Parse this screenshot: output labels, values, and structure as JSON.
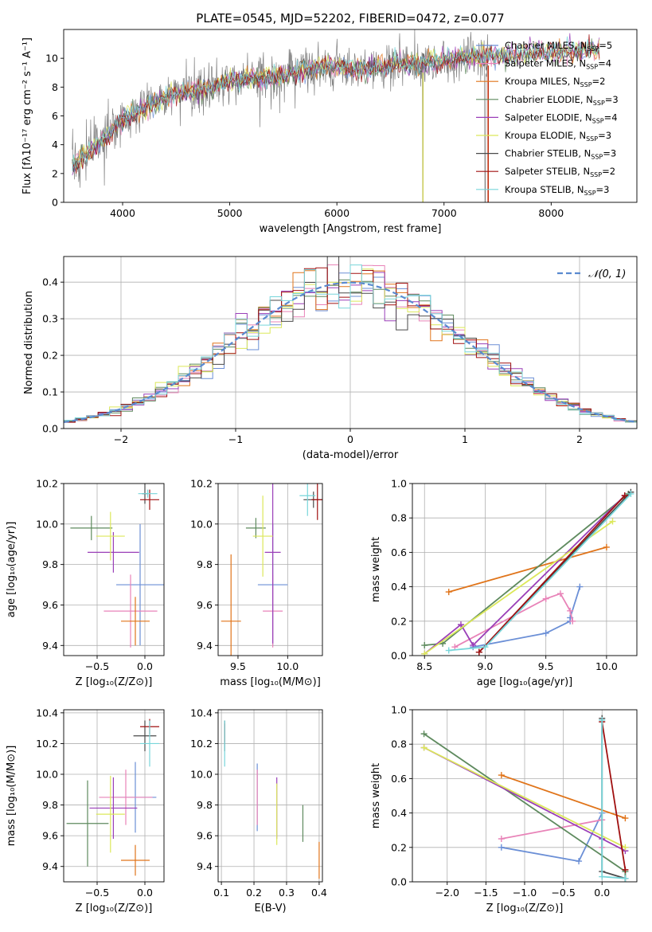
{
  "figure_title": "PLATE=0545, MJD=52202, FIBERID=0472, z=0.077",
  "colors": {
    "Chabrier MILES": "#6b8fd6",
    "Salpeter MILES": "#e883b8",
    "Kroupa MILES": "#e0741a",
    "Chabrier ELODIE": "#5e8a5e",
    "Salpeter ELODIE": "#9a3fb8",
    "Kroupa ELODIE": "#dce85a",
    "Chabrier STELIB": "#4a4a4a",
    "Salpeter STELIB": "#a01010",
    "Kroupa STELIB": "#78d6da",
    "data": "#808080",
    "normal": "#5a8ad0"
  },
  "chart_data": [
    {
      "id": "spectrum",
      "type": "line",
      "title": "PLATE=0545, MJD=52202, FIBERID=0472, z=0.077",
      "xlabel": "wavelength [Angstrom, rest frame]",
      "ylabel": "Flux [fλ10⁻¹⁷ erg cm⁻² s⁻¹ A⁻¹]",
      "xlim": [
        3450,
        8800
      ],
      "ylim": [
        0,
        12
      ],
      "xticks": [
        4000,
        5000,
        6000,
        7000,
        8000
      ],
      "yticks": [
        0,
        2,
        4,
        6,
        8,
        10
      ],
      "grid": false,
      "legend_position": "right",
      "model_x": [
        3550,
        3650,
        3750,
        3850,
        3950,
        4050,
        4150,
        4250,
        4350,
        4450,
        4550,
        4650,
        4750,
        4850,
        4950,
        5050,
        5150,
        5250,
        5350,
        5450,
        5550,
        5650,
        5750,
        5850,
        5950,
        6050,
        6150,
        6250,
        6350,
        6450,
        6550,
        6650,
        6750,
        6850,
        6950,
        7050,
        7150,
        7250,
        7350,
        7450,
        7550,
        7650,
        7750,
        7850,
        7950,
        8050,
        8150,
        8250,
        8350,
        8450
      ],
      "model_y": [
        2.6,
        3.3,
        3.9,
        4.6,
        5.5,
        5.9,
        6.3,
        6.7,
        7.1,
        7.4,
        7.6,
        7.7,
        7.8,
        8.0,
        8.3,
        8.5,
        8.6,
        8.7,
        8.6,
        8.7,
        8.9,
        9.1,
        9.3,
        9.4,
        9.4,
        9.4,
        9.2,
        9.2,
        9.4,
        9.5,
        9.6,
        9.6,
        9.6,
        9.7,
        9.8,
        9.9,
        10.0,
        10.0,
        10.1,
        10.2,
        10.2,
        10.2,
        10.3,
        10.4,
        10.4,
        10.4,
        10.5,
        10.5,
        10.6,
        10.6
      ],
      "series": [
        {
          "name": "Chabrier MILES, N_SSP=5",
          "label": "Chabrier MILES, N",
          "sub": "SSP",
          "tail": "=5"
        },
        {
          "name": "Salpeter MILES, N_SSP=4",
          "label": "Salpeter MILES, N",
          "sub": "SSP",
          "tail": "=4"
        },
        {
          "name": "Kroupa MILES, N_SSP=2",
          "label": "Kroupa MILES, N",
          "sub": "SSP",
          "tail": "=2"
        },
        {
          "name": "Chabrier ELODIE, N_SSP=3",
          "label": "Chabrier ELODIE, N",
          "sub": "SSP",
          "tail": "=3"
        },
        {
          "name": "Salpeter ELODIE, N_SSP=4",
          "label": "Salpeter ELODIE, N",
          "sub": "SSP",
          "tail": "=4"
        },
        {
          "name": "Kroupa ELODIE, N_SSP=3",
          "label": "Kroupa ELODIE, N",
          "sub": "SSP",
          "tail": "=3"
        },
        {
          "name": "Chabrier STELIB, N_SSP=3",
          "label": "Chabrier STELIB, N",
          "sub": "SSP",
          "tail": "=3"
        },
        {
          "name": "Salpeter STELIB, N_SSP=2",
          "label": "Salpeter STELIB, N",
          "sub": "SSP",
          "tail": "=2"
        },
        {
          "name": "Kroupa STELIB, N_SSP=3",
          "label": "Kroupa STELIB, N",
          "sub": "SSP",
          "tail": "=3"
        }
      ]
    },
    {
      "id": "residuals",
      "type": "line",
      "xlabel": "(data-model)/error",
      "ylabel": "Normed distribution",
      "xlim": [
        -2.5,
        2.5
      ],
      "ylim": [
        0,
        0.47
      ],
      "xticks": [
        -2,
        -1,
        0,
        1,
        2
      ],
      "yticks": [
        0.0,
        0.1,
        0.2,
        0.3,
        0.4
      ],
      "grid": true,
      "legend": "𝒩(0, 1)",
      "legend_position": "top-right",
      "bin_width": 0.1
    },
    {
      "id": "age_vs_Z",
      "type": "scatter",
      "xlabel": "Z [log₁₀(Z/Z⊙)]",
      "ylabel": "age  [log₁₀(age/yr)]",
      "xlim": [
        -0.85,
        0.2
      ],
      "ylim": [
        9.35,
        10.2
      ],
      "xticks": [
        -0.5,
        0.0
      ],
      "yticks": [
        9.4,
        9.6,
        9.8,
        10.0,
        10.2
      ],
      "grid": true,
      "points": [
        {
          "series": "Chabrier MILES",
          "x": -0.05,
          "y": 9.7,
          "xerr": 0.25,
          "yerr": 0.3
        },
        {
          "series": "Salpeter MILES",
          "x": -0.15,
          "y": 9.57,
          "xerr": 0.28,
          "yerr": 0.18
        },
        {
          "series": "Kroupa MILES",
          "x": -0.1,
          "y": 9.52,
          "xerr": 0.15,
          "yerr": 0.12
        },
        {
          "series": "Chabrier ELODIE",
          "x": -0.56,
          "y": 9.98,
          "xerr": 0.22,
          "yerr": 0.06
        },
        {
          "series": "Salpeter ELODIE",
          "x": -0.33,
          "y": 9.86,
          "xerr": 0.27,
          "yerr": 0.1
        },
        {
          "series": "Kroupa ELODIE",
          "x": -0.36,
          "y": 9.94,
          "xerr": 0.15,
          "yerr": 0.12
        },
        {
          "series": "Chabrier STELIB",
          "x": 0.0,
          "y": 10.15,
          "xerr": 0.03,
          "yerr": 0.05
        },
        {
          "series": "Salpeter STELIB",
          "x": 0.05,
          "y": 10.12,
          "xerr": 0.1,
          "yerr": 0.05
        },
        {
          "series": "Kroupa STELIB",
          "x": 0.03,
          "y": 10.15,
          "xerr": 0.1,
          "yerr": 0.02
        }
      ]
    },
    {
      "id": "age_vs_mass",
      "type": "scatter",
      "xlabel": "mass [log₁₀(M/M⊙)]",
      "ylabel": "",
      "xlim": [
        9.3,
        10.35
      ],
      "ylim": [
        9.35,
        10.2
      ],
      "xticks": [
        9.5,
        10.0
      ],
      "yticks": [
        9.4,
        9.6,
        9.8,
        10.0,
        10.2
      ],
      "grid": true,
      "points": [
        {
          "series": "Chabrier MILES",
          "x": 9.85,
          "y": 9.7,
          "xerr": 0.15,
          "yerr": 0.3
        },
        {
          "series": "Salpeter MILES",
          "x": 9.85,
          "y": 9.57,
          "xerr": 0.1,
          "yerr": 0.18
        },
        {
          "series": "Kroupa MILES",
          "x": 9.43,
          "y": 9.52,
          "xerr": 0.1,
          "yerr": 0.33
        },
        {
          "series": "Chabrier ELODIE",
          "x": 9.68,
          "y": 9.98,
          "xerr": 0.1,
          "yerr": 0.05
        },
        {
          "series": "Salpeter ELODIE",
          "x": 9.85,
          "y": 9.86,
          "xerr": 0.08,
          "yerr": 0.45
        },
        {
          "series": "Kroupa ELODIE",
          "x": 9.75,
          "y": 9.94,
          "xerr": 0.1,
          "yerr": 0.2
        },
        {
          "series": "Chabrier STELIB",
          "x": 10.26,
          "y": 10.12,
          "xerr": 0.1,
          "yerr": 0.04
        },
        {
          "series": "Salpeter STELIB",
          "x": 10.3,
          "y": 10.12,
          "xerr": 0.06,
          "yerr": 0.1
        },
        {
          "series": "Kroupa STELIB",
          "x": 10.2,
          "y": 10.14,
          "xerr": 0.08,
          "yerr": 0.1
        }
      ]
    },
    {
      "id": "weight_vs_age",
      "type": "line",
      "xlabel": "age  [log₁₀(age/yr)]",
      "ylabel": "mass weight",
      "xlim": [
        8.4,
        10.25
      ],
      "ylim": [
        0,
        1
      ],
      "xticks": [
        8.5,
        9.0,
        9.5,
        10.0
      ],
      "yticks": [
        0.0,
        0.2,
        0.4,
        0.6,
        0.8,
        1.0
      ],
      "grid": true,
      "series": [
        {
          "name": "Chabrier MILES",
          "x": [
            8.9,
            9.5,
            9.7,
            9.7,
            9.78
          ],
          "y": [
            0.05,
            0.13,
            0.2,
            0.22,
            0.4
          ]
        },
        {
          "name": "Salpeter MILES",
          "x": [
            8.75,
            9.5,
            9.62,
            9.7,
            9.72
          ],
          "y": [
            0.05,
            0.33,
            0.36,
            0.26,
            0.2
          ]
        },
        {
          "name": "Kroupa MILES",
          "x": [
            8.7,
            10.0
          ],
          "y": [
            0.37,
            0.63
          ]
        },
        {
          "name": "Chabrier ELODIE",
          "x": [
            8.5,
            8.65,
            10.18
          ],
          "y": [
            0.06,
            0.07,
            0.94
          ]
        },
        {
          "name": "Salpeter ELODIE",
          "x": [
            8.5,
            8.8,
            8.9,
            10.15
          ],
          "y": [
            0.01,
            0.18,
            0.06,
            0.93
          ]
        },
        {
          "name": "Kroupa ELODIE",
          "x": [
            8.5,
            10.05
          ],
          "y": [
            0.01,
            0.78
          ]
        },
        {
          "name": "Chabrier STELIB",
          "x": [
            8.95,
            10.2
          ],
          "y": [
            0.02,
            0.95
          ]
        },
        {
          "name": "Salpeter STELIB",
          "x": [
            8.95,
            10.15
          ],
          "y": [
            0.02,
            0.93
          ]
        },
        {
          "name": "Kroupa STELIB",
          "x": [
            8.7,
            9.0,
            10.2
          ],
          "y": [
            0.03,
            0.05,
            0.94
          ]
        }
      ]
    },
    {
      "id": "mass_vs_Z",
      "type": "scatter",
      "xlabel": "Z [log₁₀(Z/Z⊙)]",
      "ylabel": "mass [log₁₀(M/M⊙)]",
      "xlim": [
        -0.85,
        0.2
      ],
      "ylim": [
        9.3,
        10.42
      ],
      "xticks": [
        -0.5,
        0.0
      ],
      "yticks": [
        9.4,
        9.6,
        9.8,
        10.0,
        10.2,
        10.4
      ],
      "grid": true,
      "points": [
        {
          "series": "Chabrier MILES",
          "x": -0.1,
          "y": 9.85,
          "xerr": 0.22,
          "yerr": 0.23
        },
        {
          "series": "Salpeter MILES",
          "x": -0.2,
          "y": 9.85,
          "xerr": 0.28,
          "yerr": 0.18
        },
        {
          "series": "Kroupa MILES",
          "x": -0.1,
          "y": 9.44,
          "xerr": 0.15,
          "yerr": 0.1
        },
        {
          "series": "Chabrier ELODIE",
          "x": -0.6,
          "y": 9.68,
          "xerr": 0.22,
          "yerr": 0.28
        },
        {
          "series": "Salpeter ELODIE",
          "x": -0.33,
          "y": 9.78,
          "xerr": 0.25,
          "yerr": 0.2
        },
        {
          "series": "Kroupa ELODIE",
          "x": -0.36,
          "y": 9.74,
          "xerr": 0.15,
          "yerr": 0.25
        },
        {
          "series": "Chabrier STELIB",
          "x": 0.0,
          "y": 10.25,
          "xerr": 0.12,
          "yerr": 0.1
        },
        {
          "series": "Salpeter STELIB",
          "x": 0.05,
          "y": 10.31,
          "xerr": 0.1,
          "yerr": 0.05
        },
        {
          "series": "Kroupa STELIB",
          "x": 0.05,
          "y": 10.2,
          "xerr": 0.1,
          "yerr": 0.15
        }
      ]
    },
    {
      "id": "mass_vs_ebv",
      "type": "scatter",
      "xlabel": "E(B-V)",
      "ylabel": "",
      "xlim": [
        0.09,
        0.41
      ],
      "ylim": [
        9.3,
        10.42
      ],
      "xticks": [
        0.1,
        0.2,
        0.3,
        0.4
      ],
      "yticks": [
        9.4,
        9.6,
        9.8,
        10.0,
        10.2,
        10.4
      ],
      "grid": true,
      "points": [
        {
          "series": "Chabrier MILES",
          "x": 0.21,
          "y": 9.85,
          "xerr": 0,
          "yerr": 0.22
        },
        {
          "series": "Salpeter MILES",
          "x": 0.21,
          "y": 9.85,
          "xerr": 0,
          "yerr": 0.18
        },
        {
          "series": "Kroupa MILES",
          "x": 0.4,
          "y": 9.44,
          "xerr": 0,
          "yerr": 0.12
        },
        {
          "series": "Chabrier ELODIE",
          "x": 0.35,
          "y": 9.68,
          "xerr": 0,
          "yerr": 0.12
        },
        {
          "series": "Salpeter ELODIE",
          "x": 0.27,
          "y": 9.78,
          "xerr": 0,
          "yerr": 0.2
        },
        {
          "series": "Kroupa ELODIE",
          "x": 0.27,
          "y": 9.74,
          "xerr": 0,
          "yerr": 0.2
        },
        {
          "series": "Chabrier STELIB",
          "x": 0.11,
          "y": 10.25,
          "xerr": 0,
          "yerr": 0.1
        },
        {
          "series": "Salpeter STELIB",
          "x": 0.11,
          "y": 10.27,
          "xerr": 0,
          "yerr": 0.06
        },
        {
          "series": "Kroupa STELIB",
          "x": 0.11,
          "y": 10.2,
          "xerr": 0,
          "yerr": 0.15
        }
      ]
    },
    {
      "id": "weight_vs_Z",
      "type": "line",
      "xlabel": "Z [log₁₀(Z/Z⊙)]",
      "ylabel": "mass weight",
      "xlim": [
        -2.45,
        0.45
      ],
      "ylim": [
        0,
        1
      ],
      "xticks": [
        -2.0,
        -1.5,
        -1.0,
        -0.5,
        0.0
      ],
      "yticks": [
        0.0,
        0.2,
        0.4,
        0.6,
        0.8,
        1.0
      ],
      "grid": true,
      "series": [
        {
          "name": "Chabrier MILES",
          "x": [
            -1.3,
            -0.3,
            0.0
          ],
          "y": [
            0.2,
            0.12,
            0.4
          ]
        },
        {
          "name": "Salpeter MILES",
          "x": [
            -1.3,
            0.0,
            0.0
          ],
          "y": [
            0.25,
            0.36,
            0.2
          ]
        },
        {
          "name": "Kroupa MILES",
          "x": [
            -1.3,
            0.3
          ],
          "y": [
            0.62,
            0.37
          ]
        },
        {
          "name": "Chabrier ELODIE",
          "x": [
            -2.3,
            0.3,
            0.3
          ],
          "y": [
            0.86,
            0.06,
            0.02
          ]
        },
        {
          "name": "Salpeter ELODIE",
          "x": [
            -2.3,
            0.0,
            0.3
          ],
          "y": [
            0.78,
            0.25,
            0.18
          ]
        },
        {
          "name": "Kroupa ELODIE",
          "x": [
            -2.3,
            0.3
          ],
          "y": [
            0.78,
            0.2
          ]
        },
        {
          "name": "Chabrier STELIB",
          "x": [
            0.0,
            0.0,
            0.3
          ],
          "y": [
            0.95,
            0.06,
            0.02
          ]
        },
        {
          "name": "Salpeter STELIB",
          "x": [
            0.0,
            0.3
          ],
          "y": [
            0.93,
            0.07
          ]
        },
        {
          "name": "Kroupa STELIB",
          "x": [
            0.0,
            0.0,
            0.3
          ],
          "y": [
            0.94,
            0.03,
            0.02
          ]
        }
      ]
    }
  ]
}
